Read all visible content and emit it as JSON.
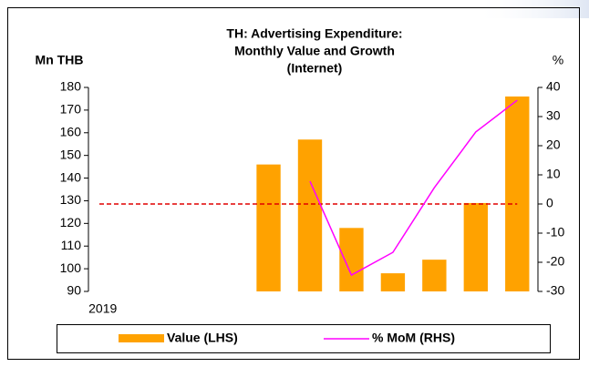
{
  "chart_data": {
    "type": "bar_line",
    "title": [
      "TH: Advertising Expenditure:",
      "Monthly Value and Growth",
      "(Internet)"
    ],
    "y_label": "Mn THB",
    "y2_label": "%",
    "categories": [
      "2019",
      null,
      null,
      null,
      null,
      null,
      null,
      null,
      null,
      null,
      null
    ],
    "series": [
      {
        "name": "Value (LHS)",
        "kind": "bar",
        "color": "#ffa200",
        "values": [
          null,
          null,
          null,
          null,
          146,
          157,
          118,
          98,
          104,
          129,
          176
        ]
      },
      {
        "name": "% MoM (RHS)",
        "kind": "line",
        "axis": "y2",
        "color": "#ff00ff",
        "values": [
          null,
          null,
          null,
          null,
          null,
          7.8,
          -24.4,
          -16.6,
          5.6,
          24.7,
          35.6
        ]
      }
    ],
    "ylim": [
      90,
      180
    ],
    "yticks": [
      90,
      100,
      110,
      120,
      130,
      140,
      150,
      160,
      170,
      180
    ],
    "y2lim": [
      -30,
      40
    ],
    "y2ticks": [
      -30,
      -20,
      -10,
      0,
      10,
      20,
      30,
      40
    ],
    "reference_line": {
      "axis": "y2",
      "value": 0,
      "color": "#e00000"
    },
    "legend": "bottom"
  }
}
